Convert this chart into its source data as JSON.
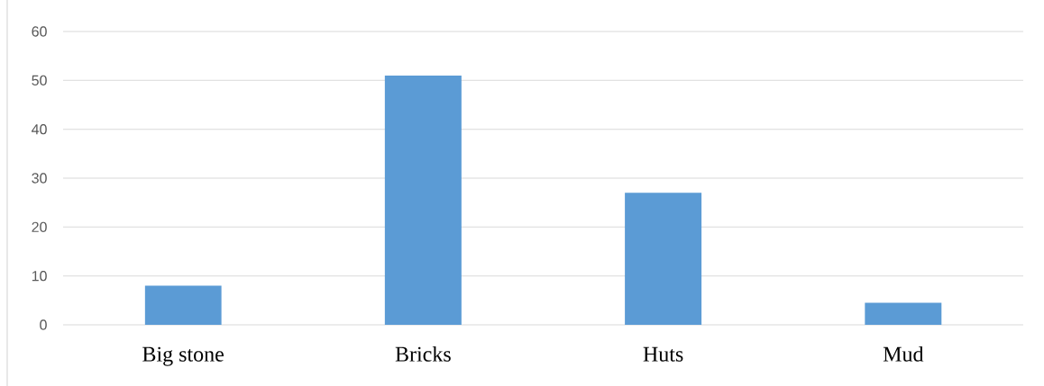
{
  "chart_data": {
    "type": "bar",
    "categories": [
      "Big stone",
      "Bricks",
      "Huts",
      "Mud"
    ],
    "values": [
      8,
      51,
      27,
      4.5
    ],
    "color": "#5b9bd5",
    "ylim": [
      0,
      60
    ],
    "yticks": [
      0,
      10,
      20,
      30,
      40,
      50,
      60
    ],
    "grid": "y"
  }
}
